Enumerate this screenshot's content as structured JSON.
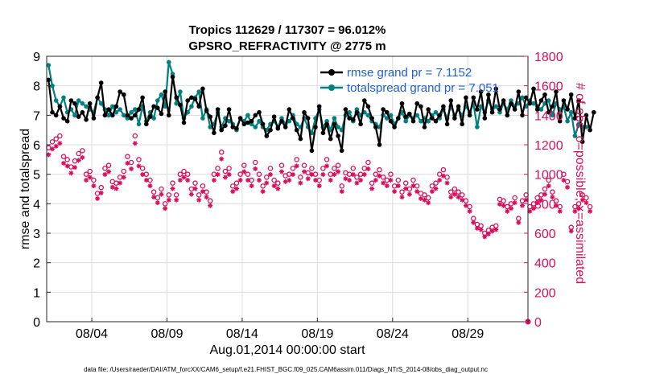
{
  "chart_data": {
    "type": "line",
    "title": "Tropics 112629 / 117307 = 96.012%",
    "subtitle": "GPSRO_REFRACTIVITY @ 2775 m",
    "xlabel": "Aug.01,2014 00:00:00 start",
    "ylabel": "rmse and totalspread",
    "ylabel_right": "# of obs: o=possible; ×=assimilated",
    "x_tick_labels": [
      "08/04",
      "08/09",
      "08/14",
      "08/19",
      "08/24",
      "08/29"
    ],
    "x_tick_days": [
      3,
      8,
      13,
      18,
      23,
      28
    ],
    "xlim": [
      0,
      32
    ],
    "ylim": [
      0,
      9
    ],
    "y_ticks": [
      "0",
      "1",
      "2",
      "3",
      "4",
      "5",
      "6",
      "7",
      "8",
      "9"
    ],
    "ylim_right": [
      0,
      1800
    ],
    "y_ticks_right": [
      "0",
      "200",
      "400",
      "600",
      "800",
      "1000",
      "1200",
      "1400",
      "1600",
      "1800"
    ],
    "footnote": "data file: /Users/raeder/DAI/ATM_forcXX/CAM6_setup/f.e21.FHIST_BGC.f09_025.CAM6assim.011/Diags_NTrS_2014-08/obs_diag_output.nc",
    "legend": [
      {
        "label": "rmse grand pr = 7.1152",
        "color": "#000000"
      },
      {
        "label": "totalspread grand pr = 7.051",
        "color": "#008080"
      }
    ],
    "colors": {
      "rmse": "#000000",
      "spread": "#008080",
      "obs": "#d6105c",
      "legend_text": "#1f5fd6",
      "right_axis": "#d6105c"
    },
    "rmse_series": [
      8.2,
      7.1,
      7.0,
      7.3,
      6.9,
      6.8,
      7.5,
      7.4,
      6.95,
      7.1,
      6.85,
      7.4,
      6.9,
      7.6,
      8.1,
      7.0,
      7.2,
      7.0,
      7.3,
      7.8,
      7.7,
      7.0,
      6.9,
      7.0,
      7.2,
      7.6,
      6.7,
      6.95,
      7.3,
      7.25,
      7.05,
      7.8,
      7.0,
      8.3,
      7.6,
      7.35,
      6.75,
      7.5,
      7.6,
      7.55,
      7.3,
      7.9,
      7.15,
      6.95,
      6.4,
      7.2,
      6.5,
      6.65,
      7.2,
      6.6,
      6.55,
      6.9,
      6.7,
      6.75,
      6.8,
      7.0,
      7.1,
      6.7,
      6.3,
      6.5,
      6.95,
      6.55,
      6.8,
      6.6,
      7.2,
      6.9,
      6.5,
      6.2,
      7.1,
      6.9,
      5.8,
      6.6,
      7.3,
      6.4,
      6.7,
      6.2,
      6.7,
      6.3,
      5.8,
      7.2,
      6.9,
      6.85,
      7.1,
      6.7,
      7.5,
      7.3,
      6.9,
      6.6,
      6.0,
      7.2,
      7.1,
      6.8,
      6.6,
      6.9,
      7.4,
      6.95,
      7.05,
      6.8,
      7.4,
      7.3,
      6.6,
      7.2,
      6.9,
      6.8,
      7.0,
      7.3,
      6.7,
      7.5,
      6.9,
      7.3,
      6.7,
      7.6,
      7.0,
      7.6,
      7.2,
      7.8,
      6.9,
      7.7,
      7.1,
      7.9,
      7.2,
      7.5,
      7.0,
      7.4,
      7.2,
      7.8,
      7.0,
      7.6,
      7.4,
      7.9,
      7.2,
      7.5,
      7.7,
      7.1,
      7.3,
      7.8,
      6.8,
      7.5,
      7.2,
      7.7,
      6.9,
      7.5,
      6.1,
      7.0,
      6.5,
      7.1
    ],
    "spread_series": [
      8.7,
      8.0,
      7.5,
      7.3,
      7.6,
      7.1,
      7.2,
      7.0,
      7.5,
      7.4,
      7.3,
      7.2,
      7.1,
      7.6,
      7.4,
      7.2,
      7.0,
      7.3,
      7.1,
      7.2,
      7.0,
      6.9,
      7.1,
      7.2,
      6.7,
      7.3,
      6.8,
      7.1,
      6.9,
      7.5,
      7.7,
      7.3,
      8.8,
      8.4,
      7.4,
      7.8,
      6.9,
      7.1,
      7.3,
      7.6,
      7.8,
      6.9,
      7.2,
      6.6,
      6.7,
      7.1,
      6.6,
      6.9,
      6.8,
      6.7,
      6.5,
      6.9,
      6.8,
      7.0,
      6.7,
      6.6,
      6.8,
      6.6,
      6.5,
      6.7,
      6.8,
      6.6,
      6.9,
      6.7,
      6.8,
      7.0,
      6.7,
      6.6,
      6.9,
      6.6,
      6.4,
      6.9,
      7.2,
      6.6,
      6.8,
      6.5,
      6.9,
      6.6,
      6.5,
      7.0,
      7.1,
      6.8,
      7.2,
      7.0,
      7.1,
      7.0,
      6.8,
      6.7,
      6.6,
      7.0,
      6.9,
      7.0,
      6.7,
      6.9,
      7.1,
      6.8,
      7.0,
      6.9,
      7.0,
      6.8,
      6.9,
      6.8,
      7.0,
      7.1,
      6.9,
      7.2,
      6.9,
      7.3,
      7.0,
      7.2,
      7.0,
      7.3,
      7.1,
      7.4,
      6.6,
      7.3,
      7.1,
      7.5,
      7.2,
      7.3,
      7.1,
      7.4,
      7.2,
      7.5,
      7.3,
      7.4,
      7.6,
      7.3,
      7.5,
      7.4,
      7.3,
      7.2,
      7.4,
      7.5,
      7.0,
      7.4,
      7.2,
      7.3,
      6.8,
      7.1,
      6.3,
      6.7,
      6.6,
      6.6
    ],
    "obs_possible": [
      1180,
      1220,
      1240,
      1260,
      1120,
      1100,
      1050,
      1090,
      1140,
      1160,
      1000,
      1020,
      960,
      870,
      910,
      1040,
      1060,
      950,
      940,
      980,
      1020,
      1120,
      1080,
      1260,
      1100,
      1040,
      1000,
      960,
      880,
      840,
      900,
      800,
      860,
      940,
      860,
      1000,
      1020,
      1000,
      900,
      940,
      860,
      920,
      880,
      820,
      1000,
      1040,
      1150,
      1020,
      1040,
      920,
      940,
      1000,
      1060,
      1000,
      960,
      1080,
      1000,
      920,
      980,
      1040,
      960,
      940,
      1060,
      990,
      1000,
      1040,
      1100,
      980,
      1060,
      1010,
      1040,
      1000,
      960,
      1040,
      1100,
      1000,
      1040,
      1060,
      920,
      1010,
      1000,
      1040,
      980,
      1000,
      1040,
      1080,
      940,
      1000,
      1030,
      980,
      960,
      1000,
      920,
      960,
      880,
      940,
      900,
      960,
      920,
      870,
      860,
      840,
      920,
      940,
      1000,
      1030,
      980,
      880,
      900,
      880,
      860,
      820,
      780,
      700,
      660,
      650,
      600,
      620,
      640,
      650,
      830,
      820,
      780,
      800,
      840,
      700,
      820,
      860,
      780,
      800,
      840,
      860,
      900,
      960,
      880,
      820,
      780,
      1000,
      950,
      640,
      780,
      800,
      860,
      840,
      780
    ]
  }
}
